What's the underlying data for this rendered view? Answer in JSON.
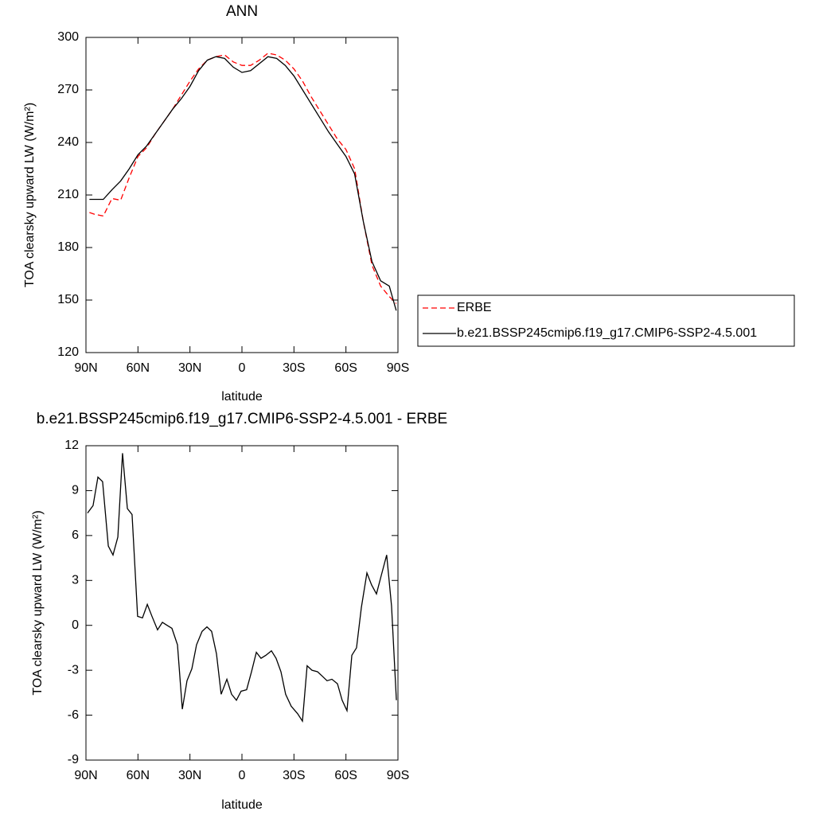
{
  "chart_data": [
    {
      "type": "line",
      "title": "ANN",
      "x_label": "latitude",
      "y_label": "TOA clearsky upward LW (W/m²)",
      "xlim": [
        90,
        -90
      ],
      "ylim": [
        120,
        300
      ],
      "xticks": [
        {
          "value": 90,
          "label": "90N"
        },
        {
          "value": 60,
          "label": "60N"
        },
        {
          "value": 30,
          "label": "30N"
        },
        0,
        {
          "value": -30,
          "label": "30S"
        },
        {
          "value": -60,
          "label": "60S"
        },
        {
          "value": -90,
          "label": "90S"
        }
      ],
      "yticks": [
        120,
        150,
        180,
        210,
        240,
        270,
        300
      ],
      "legend": "right",
      "x": [
        88,
        85,
        80,
        75,
        70,
        65,
        60,
        55,
        50,
        45,
        40,
        35,
        30,
        25,
        20,
        15,
        10,
        5,
        0,
        -5,
        -10,
        -15,
        -20,
        -25,
        -30,
        -35,
        -40,
        -45,
        -50,
        -55,
        -60,
        -65,
        -70,
        -75,
        -80,
        -85,
        -89
      ],
      "series": [
        {
          "name": "ERBE",
          "color": "#ff0000",
          "dashed": true,
          "values": [
            200,
            199,
            198,
            208,
            207,
            220,
            232,
            237,
            245,
            252,
            259,
            267,
            275,
            282,
            287,
            289,
            290,
            286,
            284,
            284,
            287,
            291,
            290,
            287,
            282,
            275,
            266,
            258,
            250,
            242,
            236,
            225,
            195,
            170,
            158,
            152,
            148
          ]
        },
        {
          "name": "b.e21.BSSP245cmip6.f19_g17.CMIP6-SSP2-4.5.001",
          "color": "#000000",
          "dashed": false,
          "values": [
            207.5,
            207.5,
            207.5,
            213,
            218,
            225,
            233,
            238,
            245,
            252,
            259,
            265,
            272,
            281,
            287,
            289,
            288,
            283,
            280,
            281,
            285,
            289,
            288,
            284,
            278,
            270,
            262,
            254,
            246,
            239,
            232,
            222,
            195,
            172,
            161,
            158,
            144
          ]
        }
      ]
    },
    {
      "type": "line",
      "title": "b.e21.BSSP245cmip6.f19_g17.CMIP6-SSP2-4.5.001 - ERBE",
      "x_label": "latitude",
      "y_label": "TOA clearsky upward LW (W/m²)",
      "xlim": [
        90,
        -90
      ],
      "ylim": [
        -9,
        12
      ],
      "xticks": [
        {
          "value": 90,
          "label": "90N"
        },
        {
          "value": 60,
          "label": "60N"
        },
        {
          "value": 30,
          "label": "30N"
        },
        0,
        {
          "value": -30,
          "label": "30S"
        },
        {
          "value": -60,
          "label": "60S"
        },
        {
          "value": -90,
          "label": "90S"
        }
      ],
      "yticks": [
        -9,
        -6,
        -3,
        0,
        3,
        6,
        9,
        12
      ],
      "color": "#000000",
      "x": [
        89.1,
        85.9,
        83.1,
        80.4,
        77.1,
        74.4,
        71.6,
        68.9,
        66.1,
        63.4,
        60.2,
        57.4,
        54.6,
        51.9,
        48.7,
        45.9,
        43.2,
        40.4,
        37.2,
        34.4,
        31.7,
        28.9,
        26.2,
        23.0,
        20.2,
        17.5,
        14.7,
        12.0,
        8.7,
        6.0,
        3.2,
        0.5,
        -2.7,
        -5.5,
        -8.3,
        -11.0,
        -13.8,
        -17.0,
        -19.7,
        -22.5,
        -25.2,
        -28.4,
        -32.1,
        -34.9,
        -37.6,
        -40.4,
        -43.6,
        -46.4,
        -49.1,
        -51.9,
        -55.1,
        -57.8,
        -60.6,
        -63.4,
        -66.1,
        -68.9,
        -72.1,
        -74.8,
        -77.6,
        -80.3,
        -83.5,
        -86.3,
        -89.1
      ],
      "values": [
        7.5,
        8.0,
        9.9,
        9.6,
        5.3,
        4.7,
        5.9,
        11.5,
        7.8,
        7.4,
        0.6,
        0.5,
        1.4,
        0.6,
        -0.3,
        0.2,
        0.0,
        -0.2,
        -1.3,
        -5.6,
        -3.7,
        -2.9,
        -1.3,
        -0.4,
        -0.1,
        -0.4,
        -1.9,
        -4.6,
        -3.6,
        -4.6,
        -5.0,
        -4.4,
        -4.3,
        -3.1,
        -1.8,
        -2.2,
        -2.0,
        -1.7,
        -2.2,
        -3.1,
        -4.6,
        -5.4,
        -5.9,
        -6.4,
        -2.7,
        -3.0,
        -3.1,
        -3.4,
        -3.7,
        -3.6,
        -3.9,
        -5.0,
        -5.7,
        -2.0,
        -1.5,
        1.2,
        3.5,
        2.7,
        2.1,
        3.3,
        4.7,
        1.3,
        -5.0
      ]
    }
  ]
}
